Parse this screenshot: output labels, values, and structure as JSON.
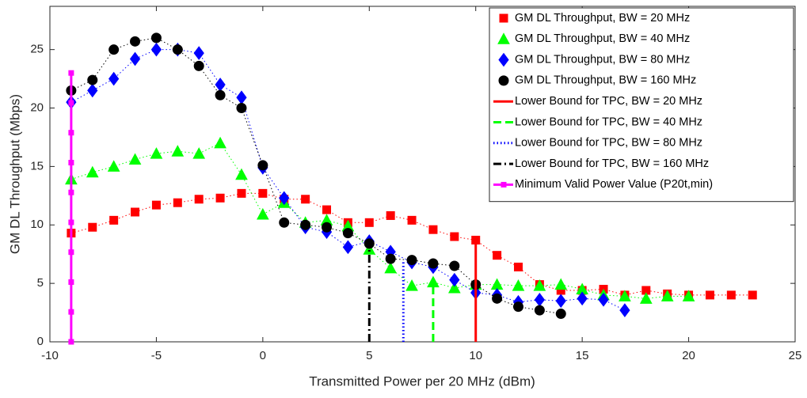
{
  "chart_data": {
    "type": "line",
    "x_label": "Transmitted Power per 20 MHz (dBm)",
    "y_label": "GM DL Throughput (Mbps)",
    "xlim": [
      -10,
      25
    ],
    "xticks": [
      -10,
      -5,
      0,
      5,
      10,
      15,
      20,
      25
    ],
    "ylim": [
      0,
      28.7
    ],
    "yticks": [
      0,
      5,
      10,
      15,
      20,
      25
    ],
    "legend": "northeast",
    "series": [
      {
        "name": "GM DL Throughput, BW = 20 MHz",
        "color": "#ff0000",
        "marker": "square",
        "linestyle": "dotted",
        "x": [
          -9,
          -8,
          -7,
          -6,
          -5,
          -4,
          -3,
          -2,
          -1,
          0,
          1,
          2,
          3,
          4,
          5,
          6,
          7,
          8,
          9,
          10,
          11,
          12,
          13,
          14,
          15,
          16,
          17,
          18,
          19,
          20,
          21,
          22,
          23
        ],
        "values": [
          9.3,
          9.8,
          10.4,
          11.1,
          11.7,
          11.9,
          12.2,
          12.3,
          12.7,
          12.7,
          12.2,
          12.2,
          11.3,
          10.2,
          10.2,
          10.8,
          10.4,
          9.6,
          9.0,
          8.7,
          7.4,
          6.4,
          4.9,
          4.4,
          4.4,
          4.5,
          4.0,
          4.4,
          4.1,
          4.0,
          4.0,
          4.0,
          4.0
        ]
      },
      {
        "name": "GM DL Throughput, BW = 40 MHz",
        "color": "#00ff00",
        "marker": "triangle",
        "linestyle": "dotted",
        "x": [
          -9,
          -8,
          -7,
          -6,
          -5,
          -4,
          -3,
          -2,
          -1,
          0,
          1,
          2,
          3,
          4,
          5,
          6,
          7,
          8,
          9,
          10,
          11,
          12,
          13,
          14,
          15,
          16,
          17,
          18,
          19,
          20
        ],
        "values": [
          13.9,
          14.5,
          15.0,
          15.6,
          16.1,
          16.3,
          16.1,
          17.0,
          14.3,
          10.9,
          11.9,
          10.2,
          10.4,
          9.9,
          7.9,
          6.3,
          4.8,
          5.1,
          4.6,
          4.9,
          4.9,
          4.8,
          4.8,
          4.9,
          4.5,
          4.0,
          3.9,
          3.7,
          3.9,
          3.9
        ]
      },
      {
        "name": "GM DL Throughput, BW = 80 MHz",
        "color": "#0000ff",
        "marker": "diamond",
        "linestyle": "dotted",
        "x": [
          -9,
          -8,
          -7,
          -6,
          -5,
          -4,
          -3,
          -2,
          -1,
          0,
          1,
          2,
          3,
          4,
          5,
          6,
          7,
          8,
          9,
          10,
          11,
          12,
          13,
          14,
          15,
          16,
          17
        ],
        "values": [
          20.5,
          21.5,
          22.5,
          24.2,
          25.0,
          25.0,
          24.7,
          22.0,
          20.9,
          14.9,
          12.3,
          9.8,
          9.4,
          8.1,
          8.6,
          7.7,
          6.8,
          6.4,
          5.3,
          4.2,
          4.0,
          3.4,
          3.6,
          3.5,
          3.7,
          3.6,
          2.7
        ]
      },
      {
        "name": "GM DL Throughput, BW = 160 MHz",
        "color": "#000000",
        "marker": "circle",
        "linestyle": "dotted",
        "x": [
          -9,
          -8,
          -7,
          -6,
          -5,
          -4,
          -3,
          -2,
          -1,
          0,
          1,
          2,
          3,
          4,
          5,
          6,
          7,
          8,
          9,
          10,
          11,
          12,
          13,
          14
        ],
        "values": [
          21.5,
          22.4,
          25.0,
          25.7,
          26.0,
          25.0,
          23.6,
          21.1,
          20.0,
          15.1,
          10.2,
          10.0,
          9.8,
          9.3,
          8.4,
          7.1,
          7.0,
          6.7,
          6.5,
          4.9,
          3.7,
          3.0,
          2.7,
          2.4
        ]
      },
      {
        "name": "Lower Bound for TPC, BW = 20 MHz",
        "color": "#ff0000",
        "marker": "none",
        "linestyle": "solid",
        "x": [
          10,
          10
        ],
        "values": [
          0,
          8.7
        ]
      },
      {
        "name": "Lower Bound for TPC, BW = 40 MHz",
        "color": "#00ff00",
        "marker": "none",
        "linestyle": "dashed",
        "x": [
          8,
          8
        ],
        "values": [
          0,
          5.1
        ]
      },
      {
        "name": "Lower Bound for TPC, BW = 80 MHz",
        "color": "#0000ff",
        "marker": "none",
        "linestyle": "dotted",
        "x": [
          6.6,
          6.6
        ],
        "values": [
          0,
          7.0
        ]
      },
      {
        "name": "Lower Bound for TPC, BW = 160 MHz",
        "color": "#000000",
        "marker": "none",
        "linestyle": "dashdot",
        "x": [
          5,
          5
        ],
        "values": [
          0,
          8.4
        ]
      },
      {
        "name": "Minimum Valid Power Value (P20t,min)",
        "color": "#ff00ff",
        "marker": "small-square",
        "linestyle": "solid",
        "x": [
          -9,
          -9,
          -9,
          -9,
          -9,
          -9,
          -9,
          -9,
          -9,
          -9
        ],
        "values": [
          0,
          2.56,
          5.11,
          7.67,
          10.22,
          12.78,
          15.33,
          17.89,
          20.44,
          23
        ]
      }
    ]
  }
}
